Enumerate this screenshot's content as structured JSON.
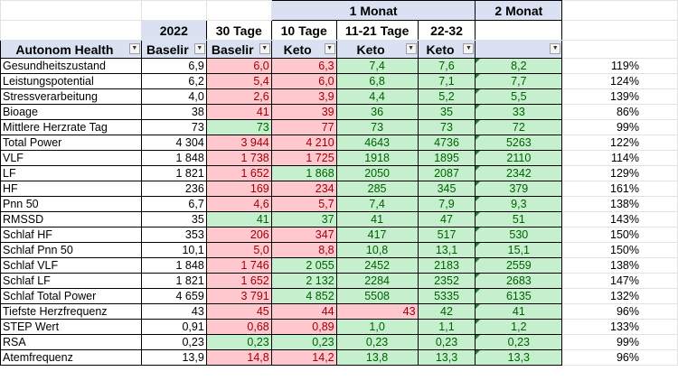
{
  "headers": {
    "group_1monat": "1 Monat",
    "group_2monat": "2 Monat",
    "row2": [
      "2022",
      "30 Tage",
      "10 Tage",
      "11-21 Tage",
      "22-32"
    ],
    "row3": [
      "Autonom Health",
      "Baselir",
      "Baselir",
      "Keto",
      "Keto",
      "Keto",
      ""
    ]
  },
  "rows": [
    {
      "label": "Gesundheitszustand",
      "v": [
        "6,9",
        "6,0",
        "6,3",
        "7,4",
        "7,6",
        "8,2"
      ],
      "pct": "119%",
      "c": [
        "w",
        "r",
        "r",
        "g",
        "g",
        "g"
      ]
    },
    {
      "label": "Leistungspotential",
      "v": [
        "6,2",
        "5,4",
        "6,0",
        "6,8",
        "7,1",
        "7,7"
      ],
      "pct": "124%",
      "c": [
        "w",
        "r",
        "r",
        "g",
        "g",
        "g"
      ]
    },
    {
      "label": "Stressverarbeitung",
      "v": [
        "4,0",
        "2,6",
        "3,9",
        "4,4",
        "5,2",
        "5,5"
      ],
      "pct": "139%",
      "c": [
        "w",
        "r",
        "r",
        "g",
        "g",
        "g"
      ]
    },
    {
      "label": "Bioage",
      "v": [
        "38",
        "41",
        "39",
        "36",
        "35",
        "33"
      ],
      "pct": "86%",
      "c": [
        "w",
        "r",
        "r",
        "g",
        "g",
        "g"
      ]
    },
    {
      "label": "Mittlere Herzrate Tag",
      "v": [
        "73",
        "73",
        "77",
        "73",
        "73",
        "72"
      ],
      "pct": "99%",
      "c": [
        "w",
        "g",
        "r",
        "g",
        "g",
        "g"
      ]
    },
    {
      "label": "Total Power",
      "v": [
        "4 304",
        "3 944",
        "4 210",
        "4643",
        "4736",
        "5263"
      ],
      "pct": "122%",
      "c": [
        "w",
        "r",
        "r",
        "g",
        "g",
        "g"
      ]
    },
    {
      "label": "VLF",
      "v": [
        "1 848",
        "1 738",
        "1 725",
        "1918",
        "1895",
        "2110"
      ],
      "pct": "114%",
      "c": [
        "w",
        "r",
        "r",
        "g",
        "g",
        "g"
      ]
    },
    {
      "label": "LF",
      "v": [
        "1 821",
        "1 652",
        "1 868",
        "2050",
        "2087",
        "2342"
      ],
      "pct": "129%",
      "c": [
        "w",
        "r",
        "g",
        "g",
        "g",
        "g"
      ]
    },
    {
      "label": "HF",
      "v": [
        "236",
        "169",
        "234",
        "285",
        "345",
        "379"
      ],
      "pct": "161%",
      "c": [
        "w",
        "r",
        "r",
        "g",
        "g",
        "g"
      ]
    },
    {
      "label": "Pnn 50",
      "v": [
        "6,7",
        "4,6",
        "5,7",
        "7,4",
        "7,9",
        "9,3"
      ],
      "pct": "138%",
      "c": [
        "w",
        "r",
        "r",
        "g",
        "g",
        "g"
      ]
    },
    {
      "label": "RMSSD",
      "v": [
        "35",
        "41",
        "37",
        "41",
        "47",
        "51"
      ],
      "pct": "143%",
      "c": [
        "w",
        "g",
        "g",
        "g",
        "g",
        "g"
      ]
    },
    {
      "label": "Schlaf HF",
      "v": [
        "353",
        "206",
        "347",
        "417",
        "517",
        "530"
      ],
      "pct": "150%",
      "c": [
        "w",
        "r",
        "r",
        "g",
        "g",
        "g"
      ]
    },
    {
      "label": "Schlaf Pnn 50",
      "v": [
        "10,1",
        "5,0",
        "8,8",
        "10,8",
        "13,1",
        "15,1"
      ],
      "pct": "150%",
      "c": [
        "w",
        "r",
        "r",
        "g",
        "g",
        "g"
      ]
    },
    {
      "label": "Schlaf VLF",
      "v": [
        "1 848",
        "1 746",
        "2 055",
        "2452",
        "2183",
        "2559"
      ],
      "pct": "138%",
      "c": [
        "w",
        "r",
        "g",
        "g",
        "g",
        "g"
      ]
    },
    {
      "label": "Schlaf LF",
      "v": [
        "1 821",
        "1 652",
        "2 132",
        "2284",
        "2352",
        "2683"
      ],
      "pct": "147%",
      "c": [
        "w",
        "r",
        "g",
        "g",
        "g",
        "g"
      ]
    },
    {
      "label": "Schlaf Total Power",
      "v": [
        "4 659",
        "3 791",
        "4 852",
        "5508",
        "5335",
        "6135"
      ],
      "pct": "132%",
      "c": [
        "w",
        "r",
        "g",
        "g",
        "g",
        "g"
      ]
    },
    {
      "label": "Tiefste Herzfrequenz",
      "v": [
        "43",
        "45",
        "44",
        "43",
        "42",
        "41"
      ],
      "pct": "96%",
      "c": [
        "w",
        "r",
        "r",
        "r",
        "g",
        "g"
      ]
    },
    {
      "label": "STEP Wert",
      "v": [
        "0,91",
        "0,68",
        "0,89",
        "1,0",
        "1,1",
        "1,2"
      ],
      "pct": "133%",
      "c": [
        "w",
        "r",
        "r",
        "g",
        "g",
        "g"
      ]
    },
    {
      "label": "RSA",
      "v": [
        "0,23",
        "0,23",
        "0,23",
        "0,23",
        "0,23",
        "0,23"
      ],
      "pct": "99%",
      "c": [
        "w",
        "g",
        "g",
        "g",
        "g",
        "g"
      ]
    },
    {
      "label": "Atemfrequenz",
      "v": [
        "13,9",
        "14,8",
        "14,2",
        "13,8",
        "13,3",
        "13,3"
      ],
      "pct": "96%",
      "c": [
        "w",
        "r",
        "r",
        "g",
        "g",
        "g"
      ]
    }
  ],
  "colors": {
    "green_fill": "#c6efce",
    "red_fill": "#ffc7ce",
    "header_blue": "#d9e1f2"
  }
}
